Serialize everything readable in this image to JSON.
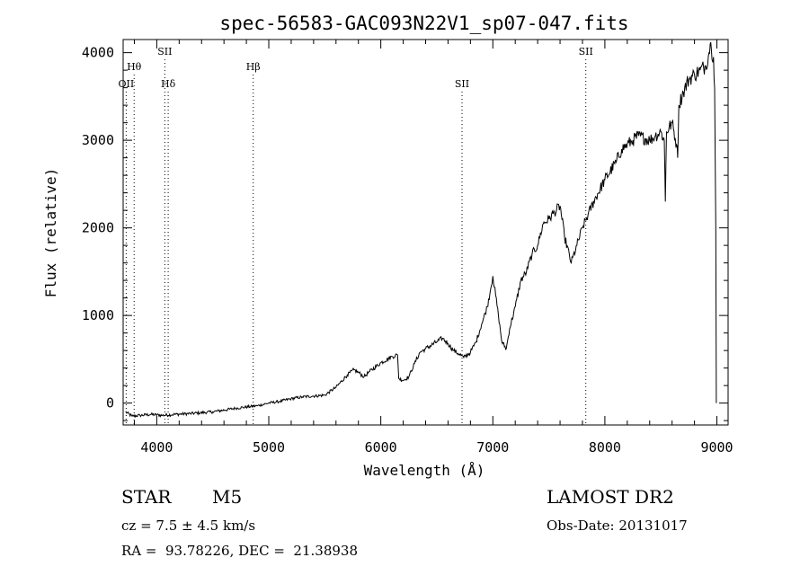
{
  "chart_data": {
    "type": "line",
    "title": "spec-56583-GAC093N22V1_sp07-047.fits",
    "xlabel": "Wavelength (Å)",
    "ylabel": "Flux (relative)",
    "xlim": [
      3700,
      9100
    ],
    "ylim": [
      -250,
      4150
    ],
    "x_ticks": [
      4000,
      5000,
      6000,
      7000,
      8000,
      9000
    ],
    "y_ticks": [
      0,
      1000,
      2000,
      3000,
      4000
    ],
    "x_tick_labels": [
      "4000",
      "5000",
      "6000",
      "7000",
      "8000",
      "9000"
    ],
    "y_tick_labels": [
      "0",
      "1000",
      "2000",
      "3000",
      "4000"
    ],
    "line_color": "#000000",
    "series": [
      {
        "x": [
          3720,
          3780,
          3850,
          3950,
          4050,
          4150,
          4300,
          4500,
          4700,
          4900,
          5000,
          5100,
          5200,
          5300,
          5400,
          5500,
          5600,
          5700,
          5760,
          5800,
          5850,
          5900,
          6000,
          6100,
          6150,
          6160,
          6200,
          6250,
          6300,
          6350,
          6400,
          6500,
          6550,
          6600,
          6650,
          6700,
          6740,
          6800,
          6850,
          6900,
          6950,
          6980,
          7000,
          7050,
          7080,
          7120,
          7150,
          7200,
          7250,
          7300,
          7350,
          7400,
          7450,
          7500,
          7550,
          7600,
          7640,
          7700,
          7750,
          7800,
          7850,
          7900,
          8000,
          8100,
          8150,
          8200,
          8250,
          8300,
          8400,
          8450,
          8500,
          8530,
          8540,
          8550,
          8600,
          8640,
          8650,
          8660,
          8700,
          8750,
          8800,
          8850,
          8900,
          8930,
          8940,
          8950,
          8970,
          8980,
          8990,
          8995
        ],
        "y": [
          -100,
          -150,
          -140,
          -130,
          -140,
          -130,
          -120,
          -100,
          -60,
          -30,
          0,
          20,
          50,
          70,
          80,
          90,
          180,
          320,
          380,
          350,
          300,
          360,
          460,
          530,
          550,
          280,
          260,
          300,
          450,
          580,
          620,
          700,
          740,
          680,
          600,
          560,
          520,
          580,
          700,
          900,
          1100,
          1300,
          1450,
          1000,
          700,
          620,
          850,
          1100,
          1400,
          1500,
          1700,
          1800,
          2050,
          2100,
          2180,
          2250,
          1900,
          1600,
          1800,
          2000,
          2150,
          2300,
          2550,
          2750,
          2900,
          2950,
          3000,
          3050,
          3000,
          3050,
          3100,
          3000,
          2300,
          3100,
          3200,
          2950,
          2800,
          3400,
          3550,
          3700,
          3750,
          3800,
          3850,
          4000,
          4100,
          4050,
          3950,
          3600,
          2000,
          0
        ]
      }
    ],
    "emission_lines": [
      {
        "label": "OII",
        "x": 3727,
        "row": 3
      },
      {
        "label": "Hθ",
        "x": 3798,
        "row": 2
      },
      {
        "label": "SII",
        "x": 4072,
        "row": 1
      },
      {
        "label": "Hδ",
        "x": 4102,
        "row": 3
      },
      {
        "label": "Hβ",
        "x": 4861,
        "row": 2
      },
      {
        "label": "SII",
        "x": 6725,
        "row": 3
      },
      {
        "label": "SII",
        "x": 7830,
        "row": 1
      }
    ]
  },
  "info": {
    "object_class": "STAR",
    "subclass": "M5",
    "survey": "LAMOST DR2",
    "cz": "cz = 7.5 ± 4.5 km/s",
    "obs_date": "Obs-Date: 20131017",
    "coords": "RA =  93.78226, DEC =  21.38938"
  }
}
